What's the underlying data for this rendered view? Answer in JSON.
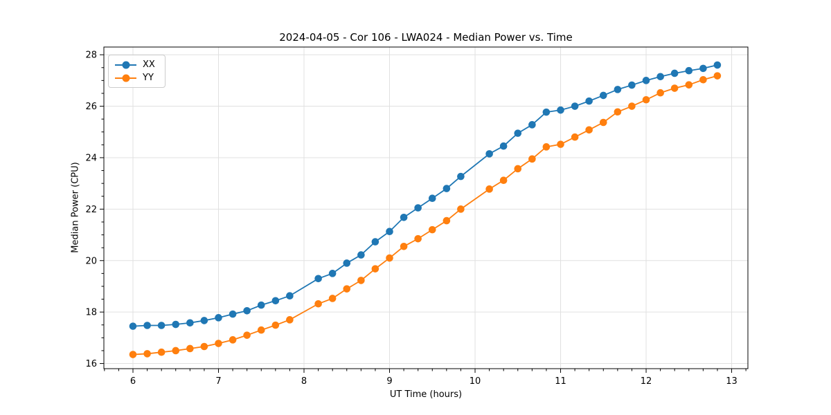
{
  "chart": {
    "title": "2024-04-05 - Cor 106 - LWA024 - Median Power vs. Time",
    "xlabel": "UT Time (hours)",
    "ylabel": "Median Power (CPU)"
  },
  "chart_data": {
    "type": "line",
    "title": "2024-04-05 - Cor 106 - LWA024 - Median Power vs. Time",
    "xlabel": "UT Time (hours)",
    "ylabel": "Median Power (CPU)",
    "grid": true,
    "legend_position": "upper left",
    "marker": "circle",
    "xlim": [
      5.66,
      13.19
    ],
    "ylim": [
      15.8,
      28.3
    ],
    "x_ticks": [
      6,
      7,
      8,
      9,
      10,
      11,
      12,
      13
    ],
    "y_ticks": [
      16,
      18,
      20,
      22,
      24,
      26,
      28
    ],
    "x": [
      6.0,
      6.167,
      6.333,
      6.5,
      6.667,
      6.833,
      7.0,
      7.167,
      7.333,
      7.5,
      7.667,
      7.833,
      8.167,
      8.333,
      8.5,
      8.667,
      8.833,
      9.0,
      9.167,
      9.333,
      9.5,
      9.667,
      9.833,
      10.167,
      10.333,
      10.5,
      10.667,
      10.833,
      11.0,
      11.167,
      11.333,
      11.5,
      11.667,
      11.833,
      12.0,
      12.167,
      12.333,
      12.5,
      12.667,
      12.833
    ],
    "series": [
      {
        "name": "XX",
        "color": "#1f77b4",
        "values": [
          17.45,
          17.48,
          17.48,
          17.52,
          17.58,
          17.67,
          17.78,
          17.92,
          18.05,
          18.27,
          18.44,
          18.63,
          19.3,
          19.5,
          19.9,
          20.22,
          20.73,
          21.13,
          21.68,
          22.05,
          22.42,
          22.8,
          23.27,
          24.15,
          24.45,
          24.95,
          25.28,
          25.77,
          25.85,
          26.0,
          26.2,
          26.42,
          26.65,
          26.82,
          27.0,
          27.15,
          27.28,
          27.38,
          27.47,
          27.6
        ]
      },
      {
        "name": "YY",
        "color": "#ff7f0e",
        "values": [
          16.35,
          16.38,
          16.44,
          16.5,
          16.58,
          16.66,
          16.78,
          16.92,
          17.1,
          17.3,
          17.49,
          17.7,
          18.32,
          18.53,
          18.9,
          19.23,
          19.68,
          20.1,
          20.55,
          20.85,
          21.2,
          21.55,
          22.0,
          22.78,
          23.12,
          23.57,
          23.95,
          24.42,
          24.52,
          24.8,
          25.08,
          25.37,
          25.78,
          26.0,
          26.25,
          26.52,
          26.7,
          26.83,
          27.03,
          27.18
        ]
      }
    ]
  }
}
